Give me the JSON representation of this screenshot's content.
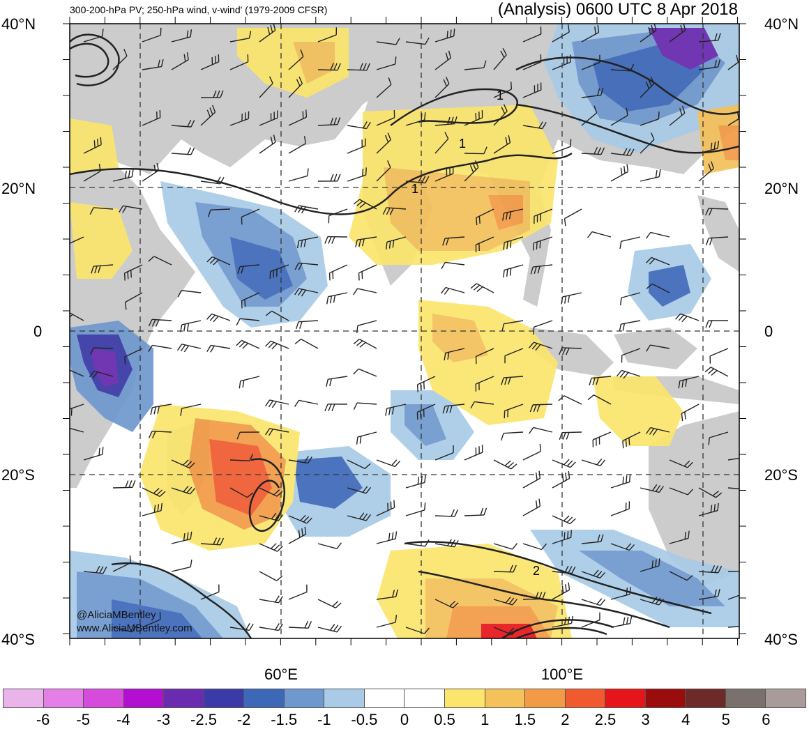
{
  "header": {
    "left_title": "300-200-hPa PV; 250-hPa wind, v-wind' (1979-2009 CFSR)",
    "right_title": "(Analysis) 0600 UTC 8 Apr 2018"
  },
  "axes": {
    "lat_labels": [
      "40°N",
      "20°N",
      "0",
      "20°S",
      "40°S"
    ],
    "lon_labels": [
      "60°E",
      "100°E"
    ]
  },
  "map": {
    "extent": {
      "lon_min": 30,
      "lon_max": 125,
      "lat_min": -40,
      "lat_max": 40
    },
    "land_color": "#cccccc",
    "contour_labels": [
      "1",
      "1",
      "1",
      "2"
    ]
  },
  "credits": {
    "handle": "@AliciaMBentley",
    "website": "www.AliciaMBentley.com"
  },
  "colorbar": {
    "colors": [
      "#eab4ea",
      "#e57fe8",
      "#d74bdc",
      "#b20fd0",
      "#6a2bb0",
      "#3b3aa8",
      "#3d68b8",
      "#6f98cf",
      "#a9cbe8",
      "#ffffff",
      "#ffffff",
      "#fbe56d",
      "#f4c15a",
      "#f29a45",
      "#ef5a2f",
      "#e5151a",
      "#9b0c0c",
      "#6d2a28",
      "#7a706c",
      "#a89b98"
    ],
    "labels": [
      "-6",
      "-5",
      "-4",
      "-3",
      "-2.5",
      "-2",
      "-1.5",
      "-1",
      "-0.5",
      "0",
      "0.5",
      "1",
      "1.5",
      "2",
      "2.5",
      "3",
      "4",
      "5",
      "6"
    ]
  }
}
